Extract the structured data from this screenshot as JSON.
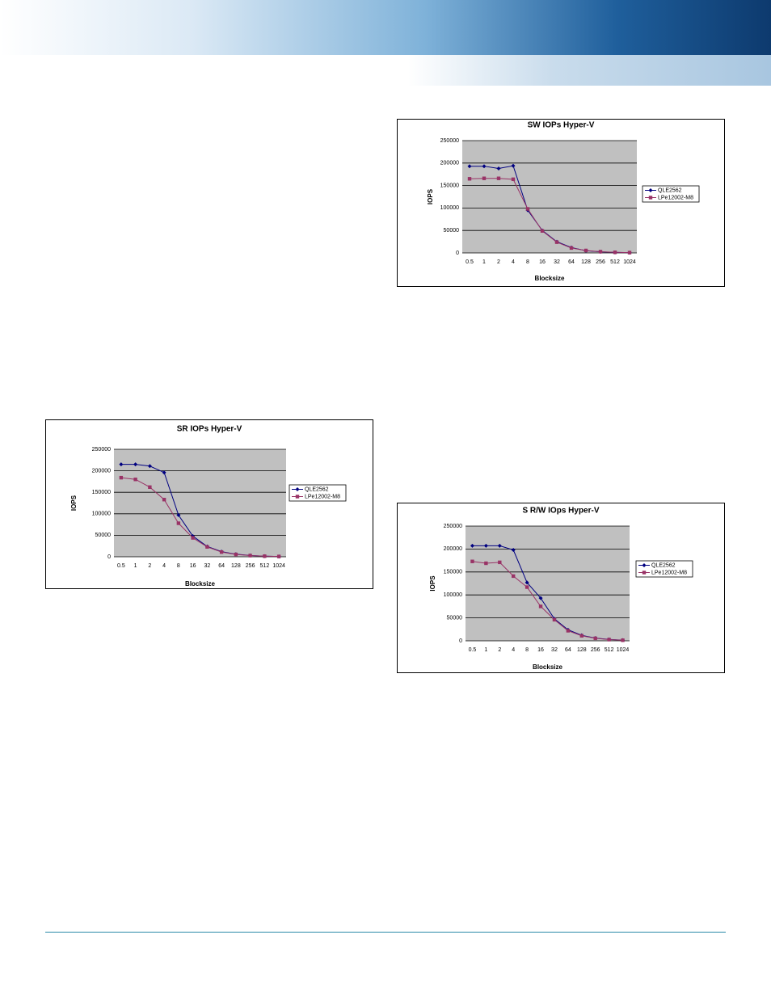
{
  "chart_data": [
    {
      "type": "line",
      "title": "SW IOPs Hyper-V",
      "x_label": "Blocksize",
      "y_label": "IOPS",
      "categories": [
        "0.5",
        "1",
        "2",
        "4",
        "8",
        "16",
        "32",
        "64",
        "128",
        "256",
        "512",
        "1024"
      ],
      "ylim": [
        0,
        250000
      ],
      "yticks": [
        0,
        50000,
        100000,
        150000,
        200000,
        250000
      ],
      "grid": true,
      "series": [
        {
          "name": "QLE2562",
          "color": "#000080",
          "marker": "diamond",
          "values": [
            193000,
            193000,
            188000,
            194000,
            95000,
            50000,
            25000,
            12000,
            5000,
            2500,
            1200,
            600
          ]
        },
        {
          "name": "LPe12002-M8",
          "color": "#993366",
          "marker": "square",
          "values": [
            165000,
            166000,
            166000,
            164000,
            98000,
            49000,
            24000,
            11000,
            5500,
            2800,
            1400,
            700
          ]
        }
      ]
    },
    {
      "type": "line",
      "title": "SR IOPs Hyper-V",
      "x_label": "Blocksize",
      "y_label": "IOPS",
      "categories": [
        "0.5",
        "1",
        "2",
        "4",
        "8",
        "16",
        "32",
        "64",
        "128",
        "256",
        "512",
        "1024"
      ],
      "ylim": [
        0,
        250000
      ],
      "yticks": [
        0,
        50000,
        100000,
        150000,
        200000,
        250000
      ],
      "grid": true,
      "series": [
        {
          "name": "QLE2562",
          "color": "#000080",
          "marker": "diamond",
          "values": [
            215000,
            215000,
            211000,
            196000,
            97000,
            48000,
            24000,
            12000,
            6000,
            3000,
            1500,
            700
          ]
        },
        {
          "name": "LPe12002-M8",
          "color": "#993366",
          "marker": "square",
          "values": [
            184000,
            180000,
            162000,
            133000,
            78000,
            44000,
            23000,
            11000,
            5500,
            2800,
            1400,
            700
          ]
        }
      ]
    },
    {
      "type": "line",
      "title": "S R/W IOps Hyper-V",
      "x_label": "Blocksize",
      "y_label": "IOPS",
      "categories": [
        "0.5",
        "1",
        "2",
        "4",
        "8",
        "16",
        "32",
        "64",
        "128",
        "256",
        "512",
        "1024"
      ],
      "ylim": [
        0,
        250000
      ],
      "yticks": [
        0,
        50000,
        100000,
        150000,
        200000,
        250000
      ],
      "grid": true,
      "series": [
        {
          "name": "QLE2562",
          "color": "#000080",
          "marker": "diamond",
          "values": [
            207000,
            207000,
            207000,
            198000,
            127000,
            93000,
            48000,
            24000,
            12000,
            6000,
            3000,
            1500
          ]
        },
        {
          "name": "LPe12002-M8",
          "color": "#993366",
          "marker": "square",
          "values": [
            173000,
            169000,
            171000,
            141000,
            117000,
            75000,
            46000,
            22000,
            11000,
            5500,
            2700,
            1300
          ]
        }
      ]
    }
  ]
}
